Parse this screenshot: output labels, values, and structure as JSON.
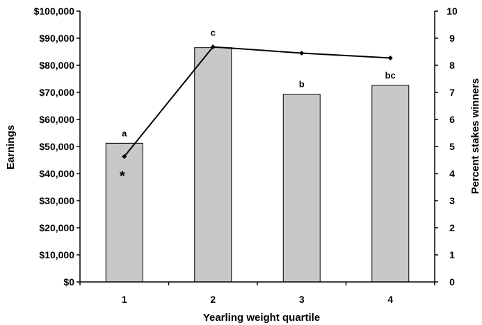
{
  "chart_data": {
    "type": "bar",
    "xlabel": "Yearling weight quartile",
    "ylabel": "Earnings",
    "y2label": "Percent stakes winners",
    "categories": [
      "1",
      "2",
      "3",
      "4"
    ],
    "ylim": [
      0,
      100000
    ],
    "y2lim": [
      0,
      10
    ],
    "y_ticks": [
      0,
      10000,
      20000,
      30000,
      40000,
      50000,
      60000,
      70000,
      80000,
      90000,
      100000
    ],
    "y_tick_labels": [
      "$0",
      "$10,000",
      "$20,000",
      "$30,000",
      "$40,000",
      "$50,000",
      "$60,000",
      "$70,000",
      "$80,000",
      "$90,000",
      "$100,000"
    ],
    "y2_ticks": [
      0,
      1,
      2,
      3,
      4,
      5,
      6,
      7,
      8,
      9,
      10
    ],
    "y2_tick_labels": [
      "0",
      "1",
      "2",
      "3",
      "4",
      "5",
      "6",
      "7",
      "8",
      "9",
      "10"
    ],
    "series": [
      {
        "type": "bar",
        "axis": "left",
        "values": [
          51200,
          86500,
          69300,
          72600
        ],
        "labels": [
          "a",
          "",
          "b",
          "bc"
        ],
        "color": "#c8c8c8"
      },
      {
        "type": "line",
        "axis": "right",
        "values": [
          4.63,
          8.68,
          8.45,
          8.27
        ],
        "labels": [
          "",
          "c",
          "",
          ""
        ],
        "color": "#000000"
      }
    ],
    "annotations": [
      {
        "text": "*",
        "category": "1",
        "y2": 4.0
      }
    ],
    "grid": false,
    "legend": "none"
  }
}
